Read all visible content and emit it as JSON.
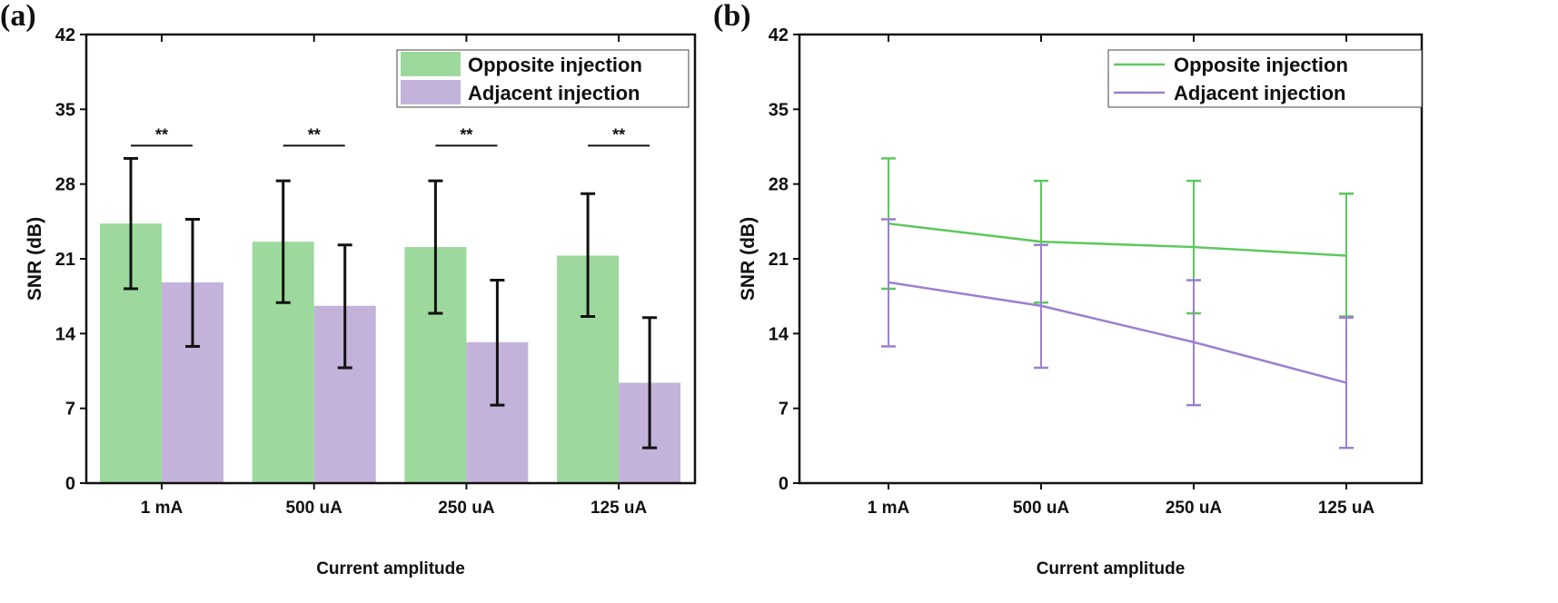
{
  "chart_data": [
    {
      "panel_label": "(a)",
      "type": "bar",
      "categories": [
        "1 mA",
        "500 uA",
        "250 uA",
        "125 uA"
      ],
      "xlabel": "Current amplitude",
      "ylabel": "SNR (dB)",
      "ylim": [
        0,
        42
      ],
      "yticks": [
        0,
        7,
        14,
        21,
        28,
        35,
        42
      ],
      "grid": false,
      "legend_position": "top-right",
      "significance": [
        "**",
        "**",
        "**",
        "**"
      ],
      "significance_level": 31.6,
      "series": [
        {
          "name": "Opposite injection",
          "color": "#9dd99d",
          "values": [
            24.3,
            22.6,
            22.1,
            21.3
          ],
          "err_high": [
            30.4,
            28.3,
            28.3,
            27.1
          ],
          "err_low": [
            18.2,
            16.9,
            15.9,
            15.6
          ]
        },
        {
          "name": "Adjacent injection",
          "color": "#c3b3da",
          "values": [
            18.8,
            16.6,
            13.2,
            9.4
          ],
          "err_high": [
            24.7,
            22.3,
            19.0,
            15.5
          ],
          "err_low": [
            12.8,
            10.8,
            7.3,
            3.3
          ]
        }
      ]
    },
    {
      "panel_label": "(b)",
      "type": "line",
      "categories": [
        "1 mA",
        "500 uA",
        "250 uA",
        "125 uA"
      ],
      "xlabel": "Current amplitude",
      "ylabel": "SNR (dB)",
      "ylim": [
        0,
        42
      ],
      "yticks": [
        0,
        7,
        14,
        21,
        28,
        35,
        42
      ],
      "grid": false,
      "legend_position": "top-right",
      "series": [
        {
          "name": "Opposite injection",
          "color": "#5cc85c",
          "values": [
            24.3,
            22.6,
            22.1,
            21.3
          ],
          "err_high": [
            30.4,
            28.3,
            28.3,
            27.1
          ],
          "err_low": [
            18.2,
            16.9,
            15.9,
            15.6
          ]
        },
        {
          "name": "Adjacent injection",
          "color": "#9b7fd0",
          "values": [
            18.8,
            16.6,
            13.2,
            9.4
          ],
          "err_high": [
            24.7,
            22.3,
            19.0,
            15.5
          ],
          "err_low": [
            12.8,
            10.8,
            7.3,
            3.3
          ]
        }
      ]
    }
  ]
}
